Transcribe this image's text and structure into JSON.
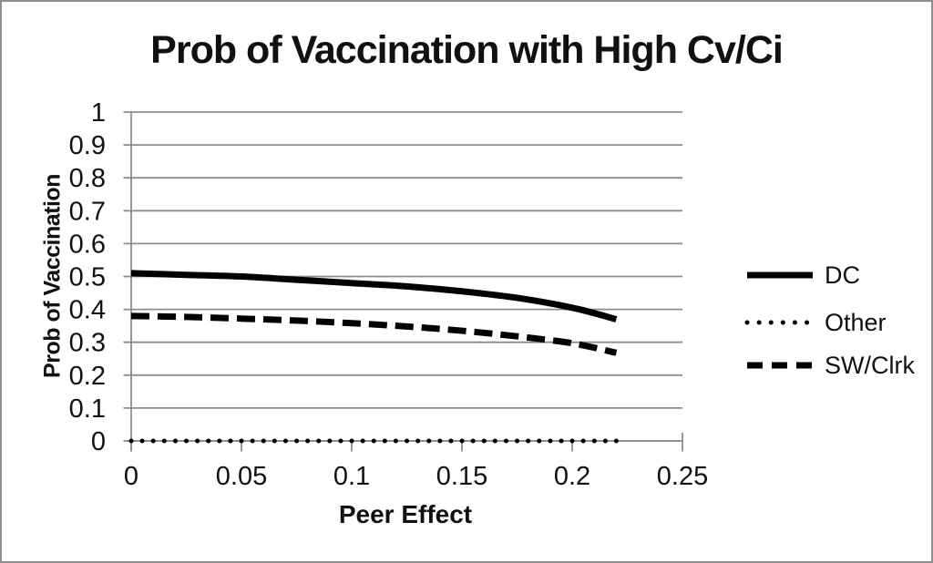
{
  "chart_data": {
    "type": "line",
    "title": "Prob of Vaccination with High Cv/Ci",
    "xlabel": "Peer Effect",
    "ylabel": "Prob of Vaccination",
    "xlim": [
      0,
      0.25
    ],
    "ylim": [
      0,
      1
    ],
    "x_tick_values": [
      0,
      0.05,
      0.1,
      0.15,
      0.2,
      0.25
    ],
    "x_tick_labels": [
      "0",
      "0.05",
      "0.1",
      "0.15",
      "0.2",
      "0.25"
    ],
    "y_tick_values": [
      0,
      0.1,
      0.2,
      0.3,
      0.4,
      0.5,
      0.6,
      0.7,
      0.8,
      0.9,
      1
    ],
    "y_tick_labels": [
      "0",
      "0.1",
      "0.2",
      "0.3",
      "0.4",
      "0.5",
      "0.6",
      "0.7",
      "0.8",
      "0.9",
      "1"
    ],
    "grid": "horizontal-only",
    "legend_position": "right",
    "x": [
      0,
      0.025,
      0.05,
      0.075,
      0.1,
      0.125,
      0.15,
      0.175,
      0.2,
      0.22
    ],
    "series": [
      {
        "name": "DC",
        "line_style": "solid",
        "values": [
          0.51,
          0.505,
          0.5,
          0.49,
          0.48,
          0.47,
          0.455,
          0.435,
          0.405,
          0.37
        ]
      },
      {
        "name": "Other",
        "line_style": "dotted",
        "values": [
          0,
          0,
          0,
          0,
          0,
          0,
          0,
          0,
          0,
          0
        ]
      },
      {
        "name": "SW/Clrk",
        "line_style": "dashed",
        "values": [
          0.38,
          0.377,
          0.372,
          0.366,
          0.358,
          0.348,
          0.335,
          0.318,
          0.297,
          0.268
        ]
      }
    ],
    "colors": {
      "series": "#000000",
      "grid": "#8c8c8c",
      "axis": "#8c8c8c",
      "text": "#111111",
      "background": "#ffffff",
      "frame_border": "#8f8f8f"
    }
  }
}
